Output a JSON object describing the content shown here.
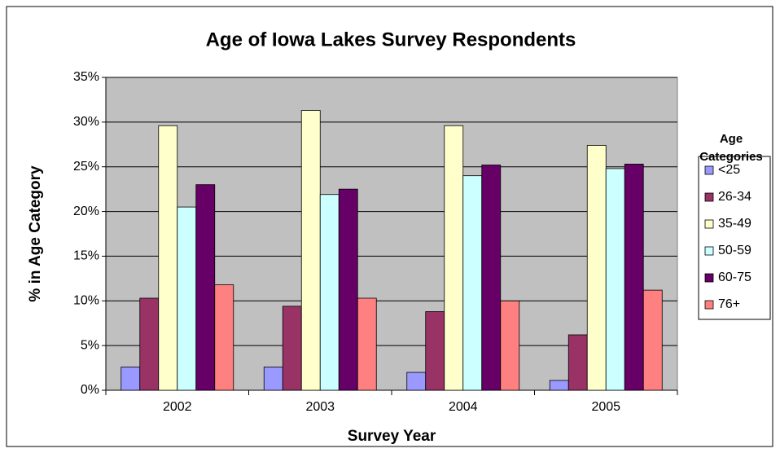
{
  "chart_data": {
    "type": "bar",
    "title": "Age of Iowa Lakes Survey Respondents",
    "x_label": "Survey Year",
    "y_label": "% in Age Category",
    "legend_title": "Age Categories",
    "legend_position": "right",
    "grid": true,
    "plot_background": "#c0c0c0",
    "categories": [
      "2002",
      "2003",
      "2004",
      "2005"
    ],
    "ylim": [
      0,
      35
    ],
    "yticks": [
      {
        "value": 0,
        "label": "0%"
      },
      {
        "value": 5,
        "label": "5%"
      },
      {
        "value": 10,
        "label": "10%"
      },
      {
        "value": 15,
        "label": "15%"
      },
      {
        "value": 20,
        "label": "20%"
      },
      {
        "value": 25,
        "label": "25%"
      },
      {
        "value": 30,
        "label": "30%"
      },
      {
        "value": 35,
        "label": "35%"
      }
    ],
    "series": [
      {
        "name": "<25",
        "color": "#9999ff",
        "values": [
          2.6,
          2.6,
          2.0,
          1.1
        ]
      },
      {
        "name": "26-34",
        "color": "#993366",
        "values": [
          10.3,
          9.4,
          8.8,
          6.2
        ]
      },
      {
        "name": "35-49",
        "color": "#ffffcc",
        "values": [
          29.6,
          31.3,
          29.6,
          27.4
        ]
      },
      {
        "name": "50-59",
        "color": "#ccffff",
        "values": [
          20.5,
          21.9,
          24.0,
          24.8
        ]
      },
      {
        "name": "60-75",
        "color": "#660066",
        "values": [
          23.0,
          22.5,
          25.2,
          25.3
        ]
      },
      {
        "name": "76+",
        "color": "#ff8080",
        "values": [
          11.8,
          10.3,
          10.0,
          11.2
        ]
      }
    ]
  }
}
